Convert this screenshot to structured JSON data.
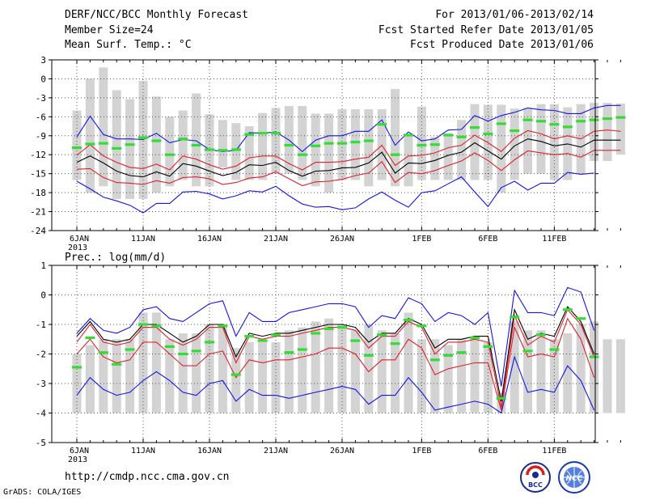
{
  "header": {
    "title": "DERF/NCC/BCC Monthly Forecast",
    "member_size": "Member Size=24",
    "variable_top": "Mean Surf. Temp.: °C",
    "period": "For 2013/01/06-2013/02/14",
    "fcst_started": "Fcst Started Refer Date 2013/01/05",
    "fcst_produced": "Fcst Produced Date 2013/01/06"
  },
  "footer": {
    "url": "http://cmdp.ncc.cma.gov.cn",
    "grads_credit": "GrADS: COLA/IGES",
    "logo_bcc_text": "BCC",
    "logo_ncc_text": "NCC"
  },
  "colors": {
    "bar": "#d3d3d3",
    "mean": "#000000",
    "red_band": "#e0202a",
    "blue_band": "#1414e6",
    "obs": "#33dd33",
    "grid": "#555555"
  },
  "chart_data": [
    {
      "type": "line",
      "title": "Mean Surf. Temp.: °C",
      "ylim": [
        -24,
        3
      ],
      "yticks": [
        3,
        0,
        -3,
        -6,
        -9,
        -12,
        -15,
        -18,
        -21,
        -24
      ],
      "xticks": [
        {
          "day": 0,
          "label": "6JAN",
          "sub": "2013"
        },
        {
          "day": 5,
          "label": "11JAN"
        },
        {
          "day": 10,
          "label": "16JAN"
        },
        {
          "day": 15,
          "label": "21JAN"
        },
        {
          "day": 20,
          "label": "26JAN"
        },
        {
          "day": 26,
          "label": "1FEB"
        },
        {
          "day": 31,
          "label": "6FEB"
        },
        {
          "day": 36,
          "label": "11FEB"
        }
      ],
      "grid": true,
      "bars_top": [
        -5,
        0,
        1.8,
        -1.8,
        -3.2,
        -0.3,
        -2.8,
        -6,
        -5,
        -2.3,
        -5.6,
        -6.5,
        -7,
        -7.5,
        -5.4,
        -4.6,
        -4.3,
        -4.3,
        -5.5,
        -5.5,
        -4.8,
        -4.8,
        -4.8,
        -4.8,
        -1.6,
        -9,
        -4.4,
        -9.2,
        -8.6,
        -6.5,
        -4,
        -4.1,
        -4.1,
        -4.7,
        -4.6,
        -4,
        -4,
        -4.5,
        -4,
        -3.8,
        -3.8,
        -3.9
      ],
      "bars_bottom": [
        -16,
        -18,
        -17,
        -19,
        -19,
        -19,
        -18,
        -17,
        -16,
        -17,
        -17,
        -14,
        -16,
        -16,
        -16,
        -15,
        -15,
        -16,
        -17,
        -18,
        -16,
        -16,
        -17,
        -16,
        -17,
        -17,
        -16,
        -16,
        -16,
        -16,
        -16,
        -16,
        -18,
        -16,
        -15,
        -15,
        -16,
        -16,
        -15,
        -13,
        -13,
        -12
      ],
      "obs": [
        -10.9,
        -10.3,
        -10.2,
        -11,
        -10.4,
        -9.3,
        -9.8,
        -12,
        -9.5,
        -10.5,
        -11.2,
        -11.3,
        -11.2,
        -8.8,
        -8.6,
        -8.6,
        -10.5,
        -12,
        -10.6,
        -10.2,
        -10.2,
        -10,
        -9.8,
        -7.2,
        -12,
        -8.9,
        -10.5,
        -10.4,
        -8.9,
        -9.2,
        -7.7,
        -8.7,
        -7.1,
        -8.2,
        -6.5,
        -6.7,
        -7.2,
        -7.6,
        -6.7,
        -6.5,
        -6.3,
        -6.1
      ],
      "series": [
        {
          "name": "max",
          "color": "blue_band",
          "values": [
            -9.2,
            -5.9,
            -8.8,
            -9.5,
            -9.5,
            -9.6,
            -8.6,
            -10.1,
            -9.6,
            -9.8,
            -11.2,
            -11.5,
            -11.3,
            -8.5,
            -8.6,
            -8.4,
            -9.7,
            -11.5,
            -9.7,
            -9,
            -9,
            -8.3,
            -8.3,
            -6.5,
            -10.5,
            -8.4,
            -9.8,
            -9.5,
            -8.1,
            -8,
            -5.8,
            -6.7,
            -5.8,
            -5.3,
            -4.6,
            -4.9,
            -5,
            -5.5,
            -5.5,
            -4.6,
            -4.2,
            -4.2
          ]
        },
        {
          "name": "upper",
          "color": "red_band",
          "values": [
            -12.1,
            -10.4,
            -12.2,
            -13.2,
            -14,
            -14.2,
            -13.5,
            -14.4,
            -12.2,
            -12.7,
            -13.6,
            -14.3,
            -13.8,
            -12.5,
            -12.2,
            -12.2,
            -13.4,
            -14.4,
            -13.2,
            -13.2,
            -13.1,
            -12.7,
            -12.4,
            -10.5,
            -13.7,
            -12.2,
            -12.1,
            -11.7,
            -10.9,
            -10.5,
            -8.9,
            -10.1,
            -11.5,
            -9.4,
            -8.2,
            -8.7,
            -9.5,
            -9,
            -9.5,
            -8.3,
            -8.1,
            -8.3
          ]
        },
        {
          "name": "mean",
          "color": "mean",
          "values": [
            -13.2,
            -12.2,
            -13.3,
            -14.6,
            -15.3,
            -15.5,
            -14.7,
            -15.4,
            -13.4,
            -13.8,
            -14.6,
            -15.3,
            -14.8,
            -13.6,
            -13.7,
            -13.2,
            -14.5,
            -15.4,
            -14.6,
            -14.5,
            -14.1,
            -14,
            -13.3,
            -11.6,
            -14.9,
            -13.3,
            -13.4,
            -12.9,
            -12.1,
            -11.6,
            -10.1,
            -11.4,
            -12.7,
            -10.6,
            -9.5,
            -9.9,
            -10.6,
            -10.3,
            -10.8,
            -9.7,
            -9.7,
            -9.7
          ]
        },
        {
          "name": "lower",
          "color": "red_band",
          "values": [
            -14.3,
            -14.2,
            -15.6,
            -16.4,
            -16.5,
            -16.7,
            -16.1,
            -16.5,
            -15.6,
            -15.5,
            -15.8,
            -16.7,
            -16.4,
            -15.7,
            -15.5,
            -14.7,
            -15.8,
            -16.9,
            -16.3,
            -16.2,
            -15.9,
            -15.3,
            -14.9,
            -13.1,
            -16.4,
            -14.8,
            -15,
            -14.5,
            -13.7,
            -13,
            -11.7,
            -12.9,
            -14.5,
            -12.8,
            -11.4,
            -11.7,
            -12,
            -11.8,
            -12.4,
            -11.3,
            -11.3,
            -11.3
          ]
        },
        {
          "name": "min",
          "color": "blue_band",
          "values": [
            -16.2,
            -17.4,
            -18.7,
            -19.3,
            -20,
            -21.2,
            -19.7,
            -19.7,
            -17.9,
            -17.8,
            -18.2,
            -19,
            -18.5,
            -17.7,
            -17.9,
            -17,
            -18.5,
            -19.8,
            -20.3,
            -20.2,
            -20.7,
            -20.4,
            -19,
            -17.9,
            -19.2,
            -20.3,
            -18,
            -17.7,
            -16.6,
            -15.5,
            -17.9,
            -20.2,
            -17.2,
            -16.2,
            -17.6,
            -16.5,
            -16.5,
            -14.8,
            -15.1,
            -14.9
          ]
        }
      ]
    },
    {
      "type": "line",
      "title": "Prec.: log(mm/d)",
      "ylim": [
        -5,
        1
      ],
      "yticks": [
        1,
        0,
        -1,
        -2,
        -3,
        -4,
        -5
      ],
      "xticks": [
        {
          "day": 0,
          "label": "6JAN",
          "sub": "2013"
        },
        {
          "day": 5,
          "label": "11JAN"
        },
        {
          "day": 10,
          "label": "16JAN"
        },
        {
          "day": 15,
          "label": "21JAN"
        },
        {
          "day": 20,
          "label": "26JAN"
        },
        {
          "day": 26,
          "label": "1FEB"
        },
        {
          "day": 31,
          "label": "6FEB"
        },
        {
          "day": 36,
          "label": "11FEB"
        }
      ],
      "grid": true,
      "bars_top": [
        -2,
        -1.7,
        -1.5,
        -1.5,
        -1.5,
        -0.6,
        -0.6,
        -1.5,
        -1.3,
        -1.3,
        -1,
        -1,
        -1.8,
        -1.6,
        -1.6,
        -1.6,
        -1.2,
        -1.1,
        -0.9,
        -0.8,
        -1,
        -1.2,
        -1,
        -1.2,
        -1.3,
        -0.6,
        -1.5,
        -1.5,
        -1.7,
        -1.5,
        -1.4,
        -1.6,
        -3.3,
        -0.9,
        -1.2,
        -1.2,
        -1.5,
        -1.3,
        -1,
        -0.9,
        -1.5,
        -1.5
      ],
      "bars_bottom": [
        -4,
        -4,
        -4,
        -4,
        -4,
        -4,
        -4,
        -4,
        -4,
        -4,
        -4,
        -4,
        -4,
        -4,
        -4,
        -4,
        -4,
        -4,
        -4,
        -4,
        -4,
        -4,
        -4,
        -4,
        -4,
        -4,
        -4,
        -4,
        -4,
        -4,
        -4,
        -4,
        -4,
        -4,
        -4,
        -4,
        -4,
        -4,
        -4,
        -4,
        -4,
        -4
      ],
      "obs": [
        -2.45,
        -1.45,
        -1.95,
        -2.35,
        -1.85,
        -1,
        -1.05,
        -1.75,
        -2,
        -1.9,
        -1.6,
        -1.05,
        -2.7,
        -1.4,
        -1.55,
        -1.35,
        -1.95,
        -1.85,
        -1.3,
        -1.15,
        -1.1,
        -1.55,
        -2.05,
        -1.35,
        -1.65,
        -0.85,
        -1.05,
        -2.2,
        -2.05,
        -1.95,
        -1.45,
        -1.75,
        -3.5,
        -0.75,
        -1.9,
        -1.35,
        -1.85,
        -0.5,
        -0.8,
        -2.1
      ],
      "series": [
        {
          "name": "max",
          "color": "blue_band",
          "values": [
            -1.3,
            -0.8,
            -1.2,
            -1.3,
            -1.1,
            -0.5,
            -0.4,
            -0.8,
            -0.9,
            -0.6,
            -0.3,
            -0.2,
            -1.4,
            -0.6,
            -0.9,
            -0.9,
            -0.6,
            -0.5,
            -0.4,
            -0.3,
            -0.3,
            -0.4,
            -1.1,
            -0.7,
            -0.8,
            -0.1,
            -0.3,
            -0.9,
            -0.6,
            -0.7,
            -1,
            -0.6,
            -3.1,
            0.15,
            -0.6,
            -0.6,
            -0.7,
            0.25,
            0.1,
            -1.2
          ]
        },
        {
          "name": "mean",
          "color": "mean",
          "values": [
            -1.4,
            -0.9,
            -1.5,
            -1.6,
            -1.5,
            -1,
            -1,
            -1.3,
            -1.6,
            -1.4,
            -1,
            -1,
            -2.1,
            -1.3,
            -1.4,
            -1.3,
            -1.3,
            -1.2,
            -1.1,
            -1,
            -1,
            -1.1,
            -1.6,
            -1.3,
            -1.3,
            -0.8,
            -1,
            -1.8,
            -1.5,
            -1.5,
            -1.4,
            -1.4,
            -3.6,
            -0.5,
            -1.5,
            -1.3,
            -1.4,
            -0.4,
            -0.9,
            -2
          ]
        },
        {
          "name": "upper",
          "color": "red_band",
          "values": [
            -1.6,
            -1,
            -1.6,
            -1.7,
            -1.6,
            -1.1,
            -1.1,
            -1.5,
            -1.7,
            -1.5,
            -1.1,
            -1.1,
            -2.3,
            -1.4,
            -1.5,
            -1.4,
            -1.4,
            -1.3,
            -1.2,
            -1.1,
            -1.1,
            -1.2,
            -1.8,
            -1.4,
            -1.4,
            -0.9,
            -1.1,
            -2,
            -1.6,
            -1.6,
            -1.5,
            -1.6,
            -3.8,
            -0.7,
            -1.7,
            -1.4,
            -1.6,
            -0.5,
            -1,
            -2.1
          ]
        },
        {
          "name": "lower",
          "color": "red_band",
          "values": [
            -2,
            -1.5,
            -2.1,
            -2.3,
            -2.2,
            -1.6,
            -1.6,
            -2,
            -2.4,
            -2.4,
            -2,
            -1.9,
            -2.8,
            -2.2,
            -2.3,
            -2.2,
            -2.2,
            -2.1,
            -2,
            -1.8,
            -1.8,
            -2,
            -2.6,
            -2.2,
            -2.2,
            -1.5,
            -1.8,
            -2.7,
            -2.5,
            -2.4,
            -2.3,
            -2.3,
            -3.9,
            -1.1,
            -2.1,
            -2,
            -2.1,
            -0.8,
            -1.5,
            -2.8
          ]
        },
        {
          "name": "min",
          "color": "blue_band",
          "values": [
            -3.4,
            -2.8,
            -3.2,
            -3.4,
            -3.3,
            -2.9,
            -2.6,
            -2.9,
            -3.3,
            -3.4,
            -3,
            -2.9,
            -3.6,
            -3.2,
            -3.4,
            -3.4,
            -3.5,
            -3.4,
            -3.3,
            -3.2,
            -3.1,
            -3.2,
            -3.7,
            -3.4,
            -3.4,
            -2.8,
            -3.3,
            -3.9,
            -3.8,
            -3.7,
            -3.6,
            -3.7,
            -4,
            -2.1,
            -3.3,
            -3.2,
            -3.3,
            -2.4,
            -2.9,
            -3.9
          ]
        }
      ]
    }
  ]
}
